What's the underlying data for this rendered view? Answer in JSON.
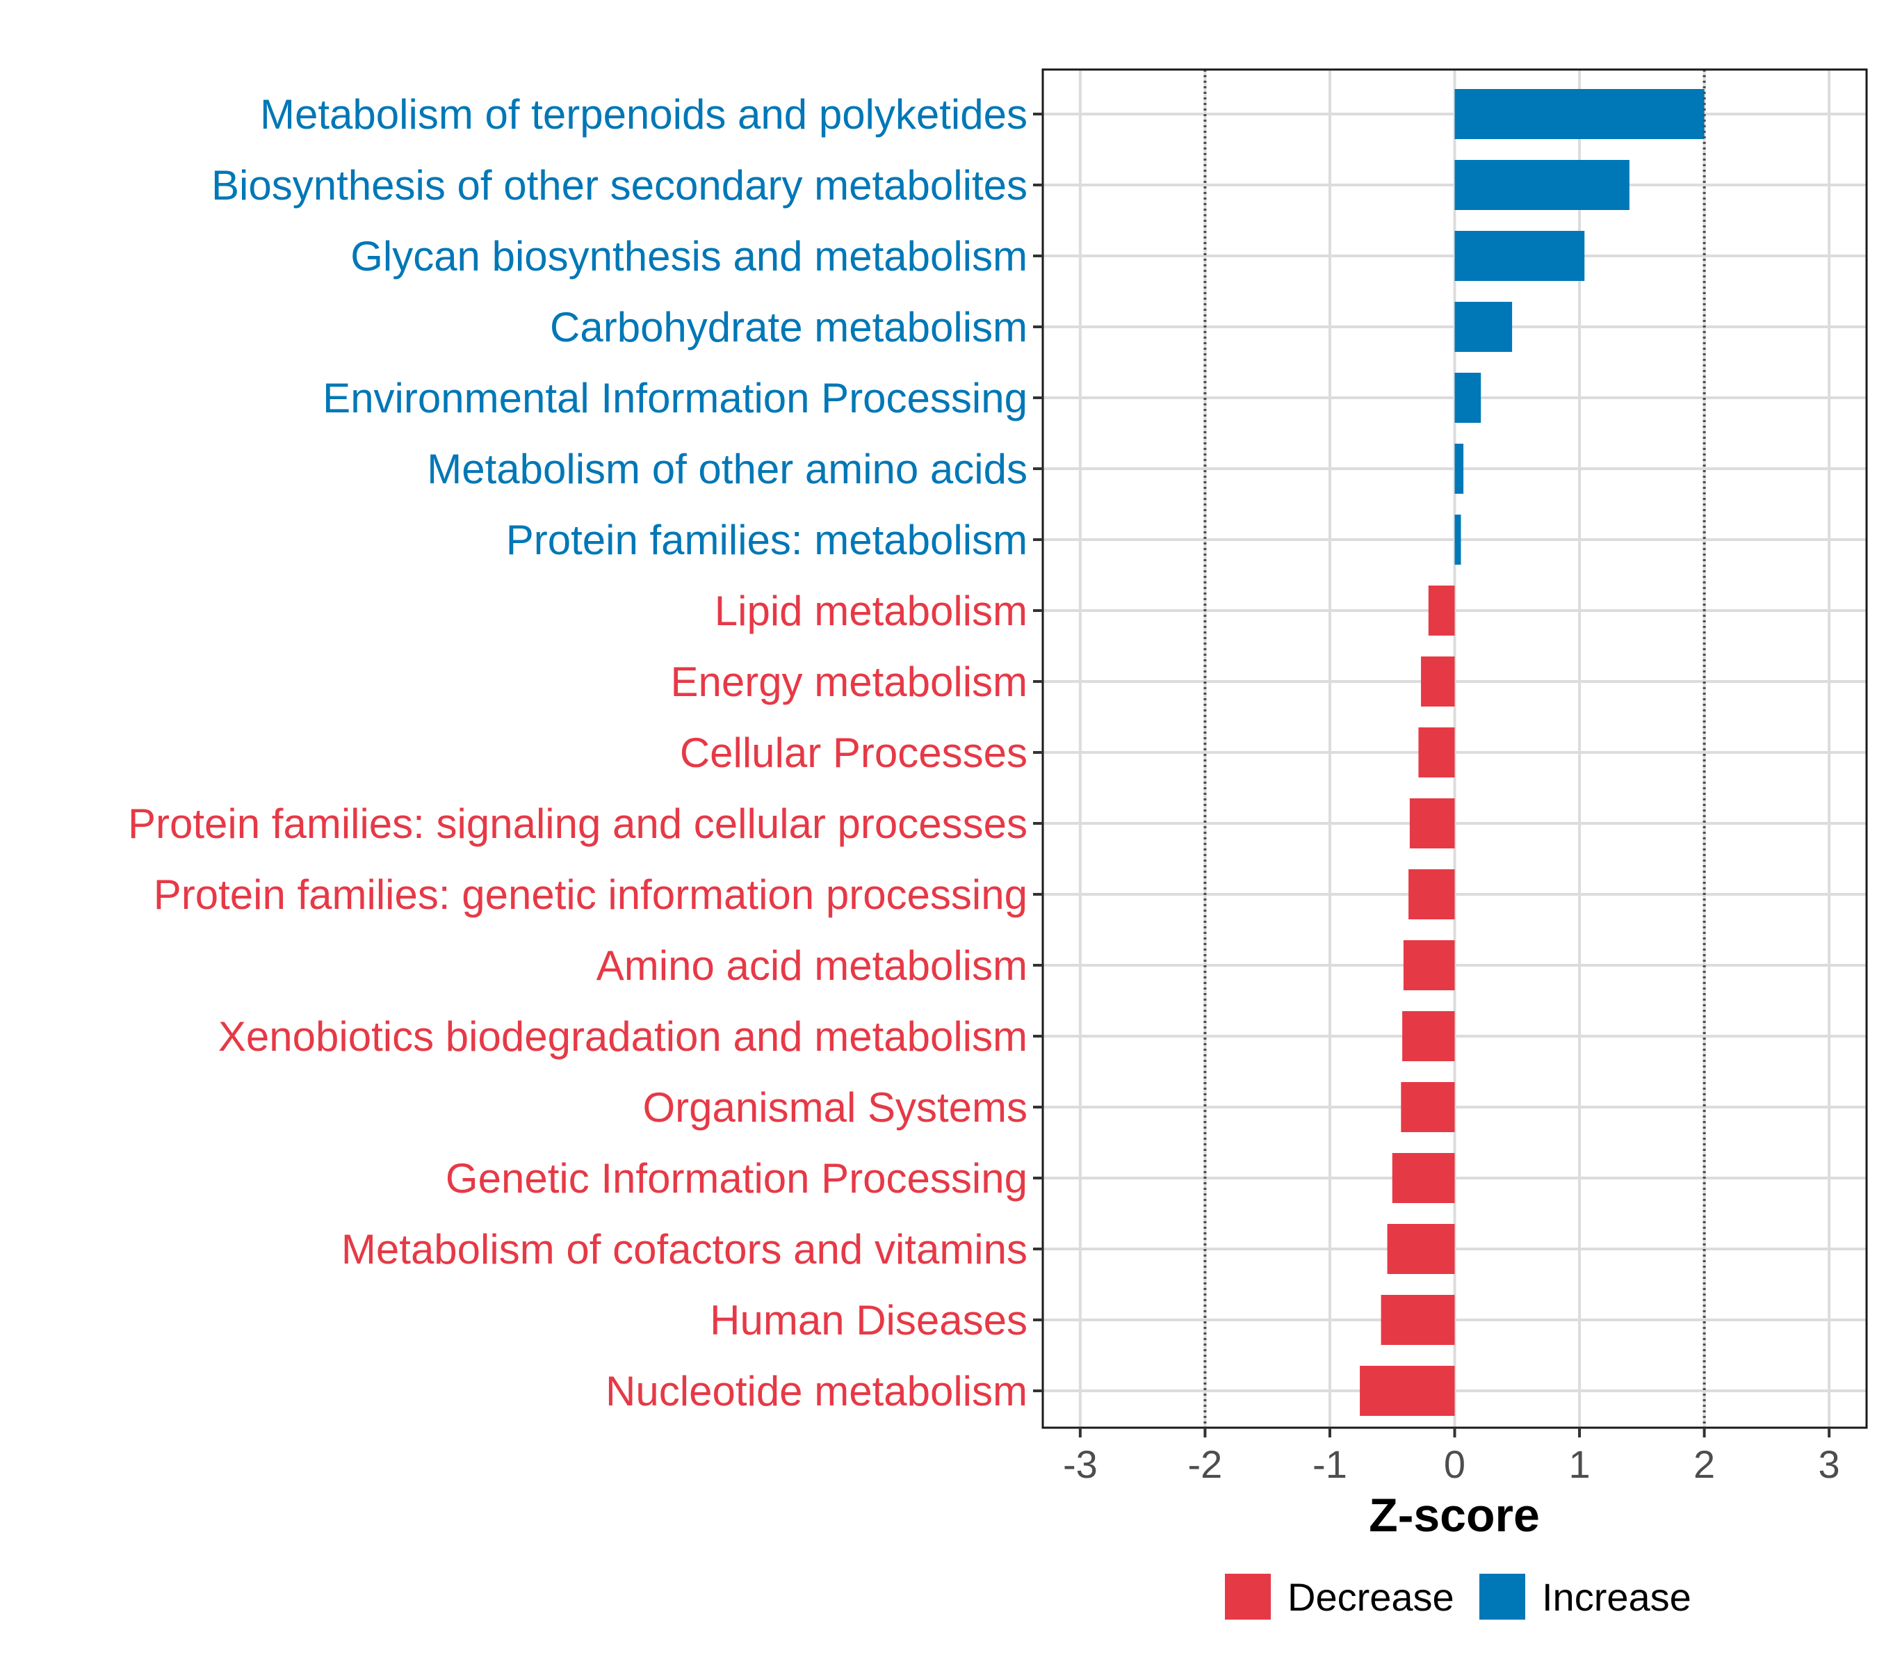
{
  "chart_data": {
    "type": "bar",
    "orientation": "horizontal",
    "xlabel": "Z-score",
    "xlim": [
      -3.3,
      3.3
    ],
    "xticks": [
      -3,
      -2,
      -1,
      0,
      1,
      2,
      3
    ],
    "reference_lines": [
      -2,
      2
    ],
    "grid": true,
    "legend_position": "bottom",
    "legend": [
      {
        "label": "Decrease",
        "color": "#E63946"
      },
      {
        "label": "Increase",
        "color": "#0077B6"
      }
    ],
    "colors": {
      "increase": "#0077B6",
      "decrease": "#E63946"
    },
    "categories": [
      "Metabolism of terpenoids and polyketides",
      "Biosynthesis of other secondary metabolites",
      "Glycan biosynthesis and metabolism",
      "Carbohydrate metabolism",
      "Environmental Information Processing",
      "Metabolism of other amino acids",
      "Protein families: metabolism",
      "Lipid metabolism",
      "Energy metabolism",
      "Cellular Processes",
      "Protein families: signaling and cellular processes",
      "Protein families: genetic information processing",
      "Amino acid metabolism",
      "Xenobiotics biodegradation and metabolism",
      "Organismal Systems",
      "Genetic Information Processing",
      "Metabolism of cofactors and vitamins",
      "Human Diseases",
      "Nucleotide metabolism"
    ],
    "values": [
      2.0,
      1.4,
      1.04,
      0.46,
      0.21,
      0.07,
      0.05,
      -0.21,
      -0.27,
      -0.29,
      -0.36,
      -0.37,
      -0.41,
      -0.42,
      -0.43,
      -0.5,
      -0.54,
      -0.59,
      -0.76
    ]
  }
}
